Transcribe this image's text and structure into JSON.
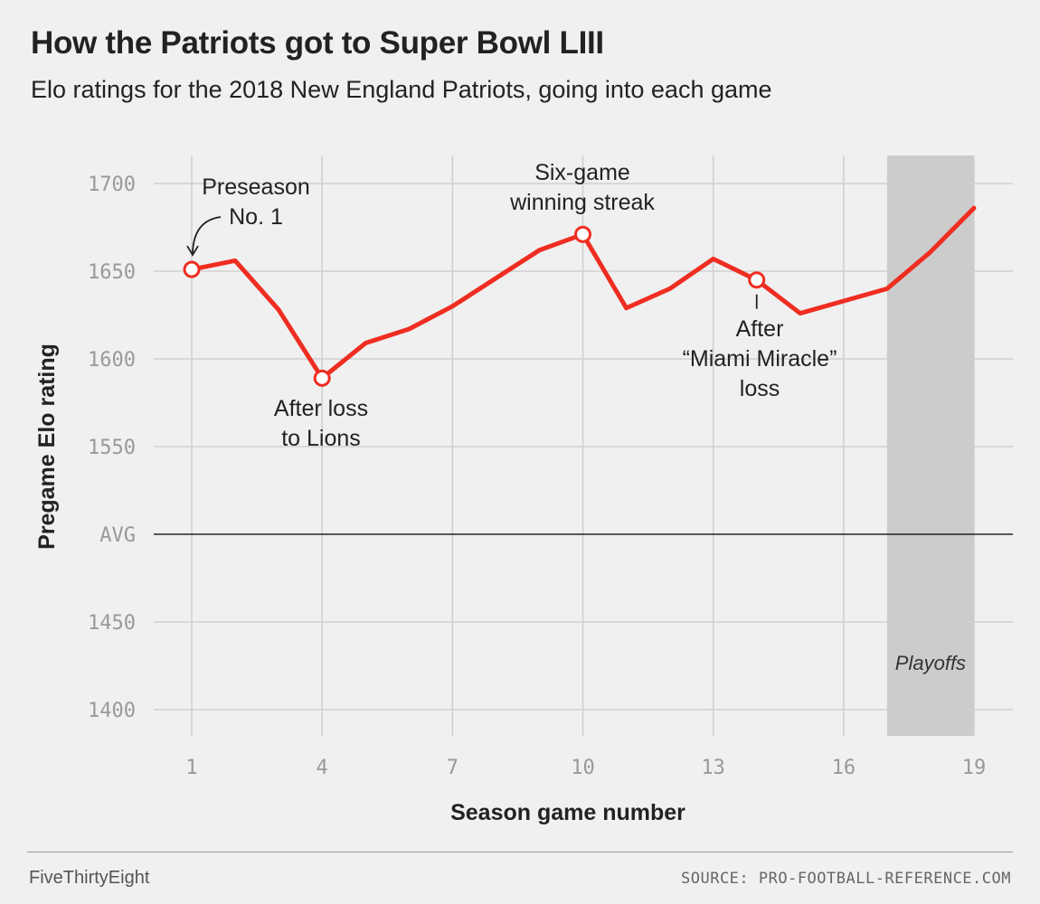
{
  "header": {
    "title": "How the Patriots got to Super Bowl LIII",
    "subtitle": "Elo ratings for the 2018 New England Patriots, going into each game"
  },
  "footer": {
    "brand": "FiveThirtyEight",
    "source": "SOURCE: PRO-FOOTBALL-REFERENCE.COM"
  },
  "colors": {
    "line": "#ef2d21",
    "grid": "#cfcfcf",
    "shade": "#cccccc",
    "axis_text": "#999999"
  },
  "chart_data": {
    "type": "line",
    "xlabel": "Season game number",
    "ylabel": "Pregame Elo rating",
    "xlim": [
      1,
      19
    ],
    "ylim": [
      1400,
      1700
    ],
    "x_ticks": [
      1,
      4,
      7,
      10,
      13,
      16,
      19
    ],
    "y_ticks": [
      {
        "value": 1700,
        "label": "1700"
      },
      {
        "value": 1650,
        "label": "1650"
      },
      {
        "value": 1600,
        "label": "1600"
      },
      {
        "value": 1550,
        "label": "1550"
      },
      {
        "value": 1500,
        "label": "AVG"
      },
      {
        "value": 1450,
        "label": "1450"
      },
      {
        "value": 1400,
        "label": "1400"
      }
    ],
    "grid": true,
    "average_line": 1500,
    "series": [
      {
        "x": [
          1,
          2,
          3,
          4,
          5,
          6,
          7,
          8,
          9,
          10,
          11,
          12,
          13,
          14,
          15,
          16,
          17,
          18,
          19
        ],
        "values": [
          1651,
          1656,
          1628,
          1589,
          1609,
          1617,
          1630,
          1646,
          1662,
          1671,
          1629,
          1640,
          1657,
          1645,
          1626,
          1633,
          1640,
          1661,
          1686
        ]
      }
    ],
    "shaded_region": {
      "x_start": 17,
      "x_end": 19,
      "label": "Playoffs"
    },
    "annotations": [
      {
        "x": 1,
        "y": 1651,
        "lines": [
          "Preseason",
          "No. 1"
        ]
      },
      {
        "x": 4,
        "y": 1589,
        "lines": [
          "After loss",
          "to Lions"
        ]
      },
      {
        "x": 10,
        "y": 1671,
        "lines": [
          "Six-game",
          "winning streak"
        ]
      },
      {
        "x": 14,
        "y": 1645,
        "lines": [
          "After",
          "“Miami Miracle”",
          "loss"
        ]
      }
    ]
  }
}
